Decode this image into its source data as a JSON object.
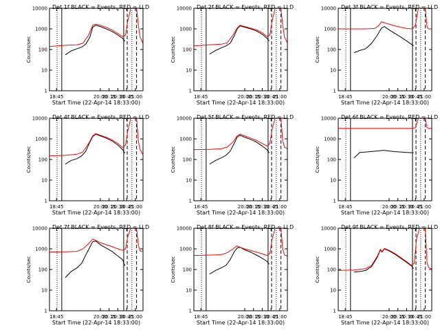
{
  "chart_data": {
    "type": "line",
    "y_scale": "log",
    "ylim": [
      1,
      10000
    ],
    "xlim": [
      "18:33",
      "21:13"
    ],
    "x_ticks": [
      "18:45",
      "20:00",
      "20:15",
      "20:30",
      "20:45",
      "21:00"
    ],
    "y_ticks": [
      "1",
      "10",
      "100",
      "1000",
      "10000"
    ],
    "ylabel": "Counts/sec",
    "xlabel": "Start Time (22-Apr-14 18:33:00)",
    "colors": {
      "events": "#000000",
      "lld": "#ff0000"
    },
    "panels": [
      {
        "title": "Det 1f BLACK = Events, RED = LLD",
        "events": [
          [
            "19:00",
            55
          ],
          [
            "19:10",
            85
          ],
          [
            "19:20",
            110
          ],
          [
            "19:28",
            130
          ],
          [
            "19:35",
            180
          ],
          [
            "19:42",
            400
          ],
          [
            "19:47",
            1200
          ],
          [
            "19:52",
            1500
          ],
          [
            "20:00",
            1300
          ],
          [
            "20:10",
            1000
          ],
          [
            "20:20",
            750
          ],
          [
            "20:30",
            500
          ],
          [
            "20:38",
            350
          ],
          [
            "20:42",
            250
          ]
        ],
        "lld": [
          [
            "18:33",
            140
          ],
          [
            "19:00",
            160
          ],
          [
            "19:20",
            170
          ],
          [
            "19:30",
            200
          ],
          [
            "19:40",
            500
          ],
          [
            "19:47",
            1500
          ],
          [
            "19:52",
            1700
          ],
          [
            "20:00",
            1500
          ],
          [
            "20:10",
            1200
          ],
          [
            "20:20",
            900
          ],
          [
            "20:30",
            600
          ],
          [
            "20:38",
            420
          ],
          [
            "20:43",
            500
          ],
          [
            "20:47",
            2500
          ],
          [
            "20:52",
            10000
          ],
          [
            "21:02",
            10000
          ],
          [
            "21:05",
            1500
          ],
          [
            "21:08",
            400
          ],
          [
            "21:13",
            200
          ]
        ]
      },
      {
        "title": "Det 2f BLACK = Events, RED = LLD",
        "events": [
          [
            "19:00",
            60
          ],
          [
            "19:10",
            90
          ],
          [
            "19:20",
            120
          ],
          [
            "19:28",
            150
          ],
          [
            "19:35",
            200
          ],
          [
            "19:42",
            450
          ],
          [
            "19:47",
            1000
          ],
          [
            "19:52",
            1400
          ],
          [
            "20:00",
            1200
          ],
          [
            "20:10",
            1000
          ],
          [
            "20:20",
            800
          ],
          [
            "20:30",
            550
          ],
          [
            "20:38",
            350
          ],
          [
            "20:42",
            260
          ]
        ],
        "lld": [
          [
            "18:33",
            150
          ],
          [
            "19:00",
            170
          ],
          [
            "19:20",
            180
          ],
          [
            "19:30",
            210
          ],
          [
            "19:40",
            500
          ],
          [
            "19:47",
            1100
          ],
          [
            "19:52",
            1500
          ],
          [
            "20:00",
            1300
          ],
          [
            "20:10",
            1100
          ],
          [
            "20:20",
            900
          ],
          [
            "20:30",
            650
          ],
          [
            "20:38",
            430
          ],
          [
            "20:43",
            500
          ],
          [
            "20:47",
            2500
          ],
          [
            "20:52",
            10000
          ],
          [
            "21:02",
            10000
          ],
          [
            "21:05",
            1500
          ],
          [
            "21:08",
            400
          ],
          [
            "21:13",
            210
          ]
        ]
      },
      {
        "title": "Det 3f BLACK = Events, RED = LLD",
        "events": [
          [
            "19:00",
            70
          ],
          [
            "19:10",
            90
          ],
          [
            "19:20",
            110
          ],
          [
            "19:30",
            200
          ],
          [
            "19:40",
            500
          ],
          [
            "19:47",
            1100
          ],
          [
            "19:52",
            1300
          ],
          [
            "20:00",
            900
          ],
          [
            "20:10",
            600
          ],
          [
            "20:20",
            400
          ],
          [
            "20:30",
            260
          ],
          [
            "20:38",
            180
          ],
          [
            "20:42",
            150
          ]
        ],
        "lld": [
          [
            "18:33",
            1000
          ],
          [
            "19:00",
            1000
          ],
          [
            "19:20",
            1000
          ],
          [
            "19:35",
            1050
          ],
          [
            "19:42",
            1400
          ],
          [
            "19:47",
            2200
          ],
          [
            "19:52",
            2000
          ],
          [
            "20:00",
            1700
          ],
          [
            "20:10",
            1400
          ],
          [
            "20:20",
            1200
          ],
          [
            "20:30",
            1050
          ],
          [
            "20:40",
            1000
          ],
          [
            "20:45",
            1500
          ],
          [
            "20:50",
            10000
          ],
          [
            "21:02",
            10000
          ],
          [
            "21:05",
            1200
          ],
          [
            "21:08",
            1000
          ],
          [
            "21:13",
            1000
          ]
        ]
      },
      {
        "title": "Det 4f BLACK = Events, RED = LLD",
        "events": [
          [
            "19:00",
            60
          ],
          [
            "19:10",
            90
          ],
          [
            "19:20",
            110
          ],
          [
            "19:28",
            150
          ],
          [
            "19:35",
            250
          ],
          [
            "19:42",
            700
          ],
          [
            "19:47",
            1300
          ],
          [
            "19:52",
            1700
          ],
          [
            "20:00",
            1400
          ],
          [
            "20:10",
            1100
          ],
          [
            "20:20",
            800
          ],
          [
            "20:30",
            500
          ],
          [
            "20:38",
            300
          ],
          [
            "20:42",
            200
          ]
        ],
        "lld": [
          [
            "18:33",
            150
          ],
          [
            "19:00",
            160
          ],
          [
            "19:20",
            180
          ],
          [
            "19:30",
            230
          ],
          [
            "19:40",
            600
          ],
          [
            "19:47",
            1400
          ],
          [
            "19:52",
            1800
          ],
          [
            "20:00",
            1500
          ],
          [
            "20:10",
            1200
          ],
          [
            "20:20",
            900
          ],
          [
            "20:30",
            600
          ],
          [
            "20:38",
            380
          ],
          [
            "20:43",
            500
          ],
          [
            "20:47",
            2500
          ],
          [
            "20:52",
            10000
          ],
          [
            "21:02",
            10000
          ],
          [
            "21:05",
            800
          ],
          [
            "21:08",
            300
          ],
          [
            "21:13",
            170
          ]
        ]
      },
      {
        "title": "Det 5f BLACK = Events, RED = LLD",
        "events": [
          [
            "19:00",
            60
          ],
          [
            "19:10",
            90
          ],
          [
            "19:20",
            120
          ],
          [
            "19:28",
            160
          ],
          [
            "19:35",
            250
          ],
          [
            "19:42",
            600
          ],
          [
            "19:47",
            1200
          ],
          [
            "19:52",
            1500
          ],
          [
            "20:00",
            1200
          ],
          [
            "20:10",
            950
          ],
          [
            "20:20",
            700
          ],
          [
            "20:30",
            450
          ],
          [
            "20:38",
            300
          ],
          [
            "20:42",
            210
          ]
        ],
        "lld": [
          [
            "18:33",
            300
          ],
          [
            "19:00",
            310
          ],
          [
            "19:20",
            330
          ],
          [
            "19:30",
            400
          ],
          [
            "19:40",
            700
          ],
          [
            "19:47",
            1400
          ],
          [
            "19:52",
            1700
          ],
          [
            "20:00",
            1400
          ],
          [
            "20:10",
            1100
          ],
          [
            "20:20",
            850
          ],
          [
            "20:30",
            600
          ],
          [
            "20:38",
            450
          ],
          [
            "20:43",
            600
          ],
          [
            "20:47",
            3000
          ],
          [
            "20:52",
            10000
          ],
          [
            "21:02",
            10000
          ],
          [
            "21:05",
            800
          ],
          [
            "21:08",
            400
          ],
          [
            "21:13",
            330
          ]
        ]
      },
      {
        "title": "Det 6f BLACK = Events, RED = LLD",
        "events": [
          [
            "19:00",
            120
          ],
          [
            "19:10",
            220
          ],
          [
            "19:20",
            230
          ],
          [
            "19:40",
            260
          ],
          [
            "19:50",
            280
          ],
          [
            "20:00",
            260
          ],
          [
            "20:10",
            240
          ],
          [
            "20:20",
            230
          ],
          [
            "20:30",
            220
          ],
          [
            "20:42",
            210
          ]
        ],
        "lld": [
          [
            "18:33",
            3200
          ],
          [
            "19:20",
            3200
          ],
          [
            "20:00",
            3200
          ],
          [
            "20:40",
            3200
          ],
          [
            "20:45",
            3500
          ],
          [
            "20:50",
            10000
          ],
          [
            "21:02",
            10000
          ],
          [
            "21:05",
            3500
          ],
          [
            "21:08",
            3200
          ],
          [
            "21:13",
            3200
          ]
        ]
      },
      {
        "title": "Det 7f BLACK = Events, RED = LLD",
        "events": [
          [
            "19:00",
            40
          ],
          [
            "19:10",
            80
          ],
          [
            "19:20",
            120
          ],
          [
            "19:28",
            200
          ],
          [
            "19:35",
            500
          ],
          [
            "19:42",
            1200
          ],
          [
            "19:47",
            2200
          ],
          [
            "19:52",
            2400
          ],
          [
            "20:00",
            1600
          ],
          [
            "20:10",
            1100
          ],
          [
            "20:20",
            750
          ],
          [
            "20:30",
            450
          ],
          [
            "20:38",
            300
          ],
          [
            "20:42",
            150
          ]
        ],
        "lld": [
          [
            "18:33",
            700
          ],
          [
            "19:00",
            720
          ],
          [
            "19:20",
            760
          ],
          [
            "19:30",
            1000
          ],
          [
            "19:40",
            1800
          ],
          [
            "19:47",
            3000
          ],
          [
            "19:52",
            2600
          ],
          [
            "20:00",
            2000
          ],
          [
            "20:10",
            1600
          ],
          [
            "20:20",
            1300
          ],
          [
            "20:30",
            1000
          ],
          [
            "20:38",
            850
          ],
          [
            "20:43",
            1000
          ],
          [
            "20:47",
            4000
          ],
          [
            "20:52",
            10000
          ],
          [
            "21:02",
            10000
          ],
          [
            "21:05",
            1500
          ],
          [
            "21:08",
            800
          ],
          [
            "21:13",
            750
          ]
        ]
      },
      {
        "title": "Det 8f BLACK = Events, RED = LLD",
        "events": [
          [
            "19:00",
            60
          ],
          [
            "19:10",
            90
          ],
          [
            "19:20",
            120
          ],
          [
            "19:28",
            160
          ],
          [
            "19:35",
            300
          ],
          [
            "19:42",
            700
          ],
          [
            "19:47",
            1100
          ],
          [
            "19:52",
            1200
          ],
          [
            "20:00",
            900
          ],
          [
            "20:10",
            700
          ],
          [
            "20:20",
            500
          ],
          [
            "20:30",
            350
          ],
          [
            "20:38",
            250
          ],
          [
            "20:42",
            180
          ]
        ],
        "lld": [
          [
            "18:33",
            480
          ],
          [
            "19:00",
            500
          ],
          [
            "19:20",
            520
          ],
          [
            "19:30",
            650
          ],
          [
            "19:40",
            1000
          ],
          [
            "19:47",
            1400
          ],
          [
            "19:52",
            1200
          ],
          [
            "20:00",
            1000
          ],
          [
            "20:10",
            850
          ],
          [
            "20:20",
            700
          ],
          [
            "20:30",
            580
          ],
          [
            "20:38",
            480
          ],
          [
            "20:43",
            600
          ],
          [
            "20:47",
            3000
          ],
          [
            "20:52",
            10000
          ],
          [
            "21:02",
            10000
          ],
          [
            "21:05",
            1000
          ],
          [
            "21:08",
            500
          ],
          [
            "21:13",
            450
          ]
        ]
      },
      {
        "title": "Det 9f BLACK = Events, RED = LLD",
        "events": [
          [
            "19:00",
            75
          ],
          [
            "19:10",
            80
          ],
          [
            "19:20",
            90
          ],
          [
            "19:30",
            140
          ],
          [
            "19:40",
            400
          ],
          [
            "19:45",
            900
          ],
          [
            "19:48",
            700
          ],
          [
            "19:52",
            1000
          ],
          [
            "20:00",
            800
          ],
          [
            "20:10",
            550
          ],
          [
            "20:20",
            350
          ],
          [
            "20:30",
            220
          ],
          [
            "20:38",
            150
          ],
          [
            "20:42",
            110
          ]
        ],
        "lld": [
          [
            "18:33",
            90
          ],
          [
            "19:00",
            95
          ],
          [
            "19:20",
            110
          ],
          [
            "19:30",
            160
          ],
          [
            "19:40",
            450
          ],
          [
            "19:45",
            950
          ],
          [
            "19:48",
            750
          ],
          [
            "19:52",
            1050
          ],
          [
            "20:00",
            850
          ],
          [
            "20:10",
            600
          ],
          [
            "20:20",
            380
          ],
          [
            "20:30",
            240
          ],
          [
            "20:38",
            160
          ],
          [
            "20:43",
            200
          ],
          [
            "20:47",
            3000
          ],
          [
            "20:52",
            10000
          ],
          [
            "21:02",
            10000
          ],
          [
            "21:05",
            200
          ],
          [
            "21:08",
            120
          ],
          [
            "21:13",
            110
          ]
        ]
      }
    ]
  }
}
